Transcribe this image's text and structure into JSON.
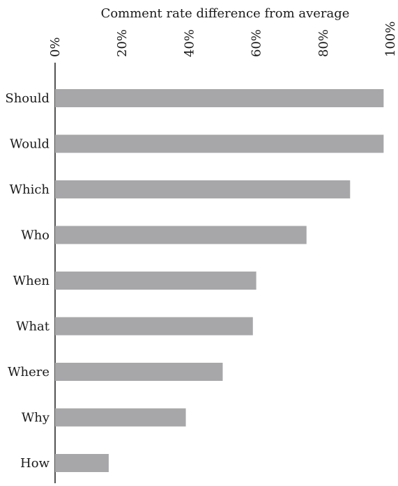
{
  "chart_data": {
    "type": "bar",
    "orientation": "horizontal",
    "title": "",
    "xlabel": "Comment rate difference from average",
    "ylabel": "",
    "categories": [
      "Should",
      "Would",
      "Which",
      "Who",
      "When",
      "What",
      "Where",
      "Why",
      "How"
    ],
    "values": [
      98,
      98,
      88,
      75,
      60,
      59,
      50,
      39,
      16
    ],
    "xlim": [
      0,
      100
    ],
    "xticks": [
      "0%",
      "20%",
      "40%",
      "60%",
      "80%",
      "100%"
    ],
    "xtick_values": [
      0,
      20,
      40,
      60,
      80,
      100
    ],
    "x_axis_position": "top",
    "grid": false,
    "legend": "none",
    "bar_color": "#a7a7aa"
  }
}
